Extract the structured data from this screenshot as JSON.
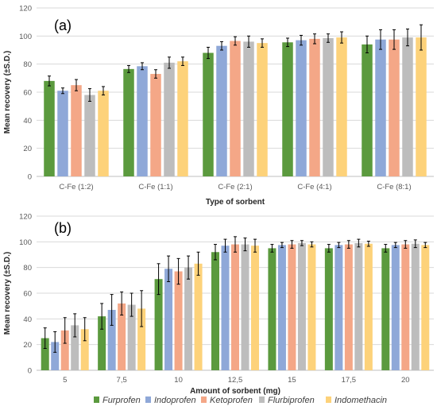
{
  "chart_data": [
    {
      "type": "bar",
      "panel_label": "(a)",
      "xlabel": "Type of sorbent",
      "ylabel": "Mean recovery (±S.D.)",
      "ylim": [
        0,
        120
      ],
      "yticks": [
        "0",
        "20",
        "40",
        "60",
        "80",
        "100",
        "120"
      ],
      "grid": true,
      "categories": [
        "C-Fe (1:2)",
        "C-Fe (1:1)",
        "C-Fe (2:1)",
        "C-Fe (4:1)",
        "C-Fe (8:1)"
      ],
      "series": [
        {
          "name": "Furprofen",
          "color": "#5b9a3e",
          "values": [
            68,
            76.5,
            88,
            95.5,
            94
          ],
          "errors": [
            3.5,
            2.5,
            4,
            3,
            6
          ]
        },
        {
          "name": "Indoprofen",
          "color": "#8fa8d8",
          "values": [
            61,
            78.5,
            93,
            97,
            97.5
          ],
          "errors": [
            2,
            2.5,
            3,
            3.5,
            7
          ]
        },
        {
          "name": "Ketoprofen",
          "color": "#f4a787",
          "values": [
            65,
            73,
            96.5,
            98,
            97.5
          ],
          "errors": [
            4,
            3,
            3,
            3.5,
            7
          ]
        },
        {
          "name": "Flurbiprofen",
          "color": "#bdbdbd",
          "values": [
            58,
            81,
            96,
            98.5,
            99
          ],
          "errors": [
            4.5,
            4,
            4,
            3,
            6
          ]
        },
        {
          "name": "Indomethacin",
          "color": "#fdd27a",
          "values": [
            61,
            82,
            95,
            99,
            99
          ],
          "errors": [
            3,
            3,
            3,
            4,
            9
          ]
        }
      ]
    },
    {
      "type": "bar",
      "panel_label": "(b)",
      "xlabel": "Amount of sorbent (mg)",
      "ylabel": "Mean recovery (±S.D.)",
      "ylim": [
        0,
        120
      ],
      "yticks": [
        "0",
        "20",
        "40",
        "60",
        "80",
        "100",
        "120"
      ],
      "grid": true,
      "categories": [
        "5",
        "7,5",
        "10",
        "12,5",
        "15",
        "17,5",
        "20"
      ],
      "series": [
        {
          "name": "Furprofen",
          "color": "#5b9a3e",
          "values": [
            25,
            42,
            71,
            92,
            95,
            95,
            95
          ],
          "errors": [
            8,
            10,
            12,
            6,
            3,
            3,
            3
          ]
        },
        {
          "name": "Indoprofen",
          "color": "#8fa8d8",
          "values": [
            22,
            47,
            79,
            97,
            97.5,
            97.5,
            97.5
          ],
          "errors": [
            8,
            12,
            10,
            5,
            2,
            2,
            2
          ]
        },
        {
          "name": "Ketoprofen",
          "color": "#f4a787",
          "values": [
            31,
            52,
            77,
            98,
            98,
            98,
            98
          ],
          "errors": [
            10,
            9,
            10,
            6,
            3,
            3,
            3
          ]
        },
        {
          "name": "Flurbiprofen",
          "color": "#bdbdbd",
          "values": [
            35,
            51,
            80,
            98,
            99,
            99,
            98.5
          ],
          "errors": [
            9,
            9,
            9,
            5,
            2,
            3,
            3
          ]
        },
        {
          "name": "Indomethacin",
          "color": "#fdd27a",
          "values": [
            32,
            48,
            83,
            97,
            98,
            98.5,
            97.5
          ],
          "errors": [
            9,
            14,
            9,
            5,
            2,
            2,
            2
          ]
        }
      ]
    }
  ],
  "legend": {
    "placement": "bottom",
    "items": [
      "Furprofen",
      "Indoprofen",
      "Ketoprofen",
      "Flurbiprofen",
      "Indomethacin"
    ],
    "colors": [
      "#5b9a3e",
      "#8fa8d8",
      "#f4a787",
      "#bdbdbd",
      "#fdd27a"
    ]
  }
}
